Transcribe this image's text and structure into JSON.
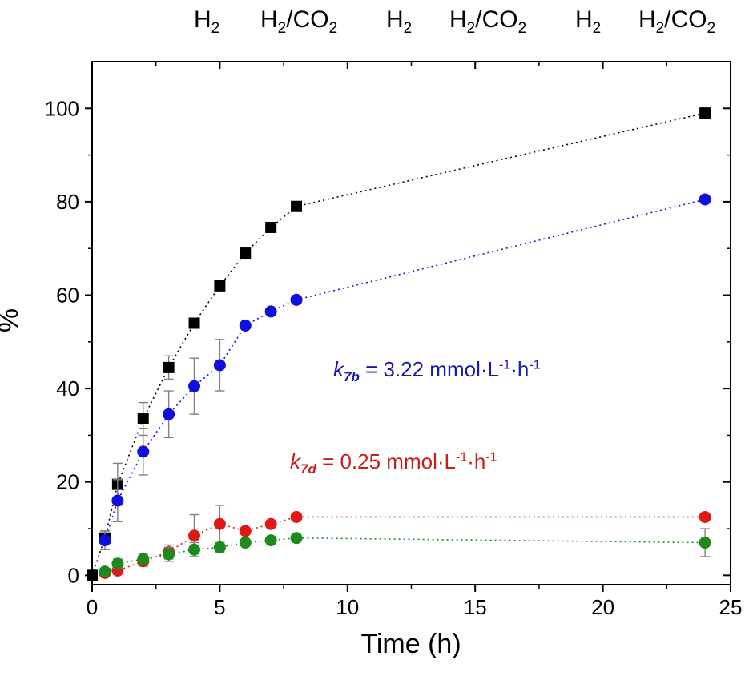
{
  "header_labels": [
    {
      "base": "H",
      "sub": "2",
      "tail": ""
    },
    {
      "base": "H",
      "sub": "2",
      "tail": "/CO",
      "sub2": "2"
    },
    {
      "base": "H",
      "sub": "2",
      "tail": ""
    },
    {
      "base": "H",
      "sub": "2",
      "tail": "/CO",
      "sub2": "2"
    },
    {
      "base": "H",
      "sub": "2",
      "tail": ""
    },
    {
      "base": "H",
      "sub": "2",
      "tail": "/CO",
      "sub2": "2"
    }
  ],
  "chart_data": {
    "type": "scatter",
    "xlabel": "Time (h)",
    "ylabel": "%",
    "xlim": [
      0,
      25
    ],
    "ylim": [
      -2,
      110
    ],
    "xticks": [
      0,
      5,
      10,
      15,
      20,
      25
    ],
    "yticks": [
      0,
      20,
      40,
      60,
      80,
      100
    ],
    "grid": false,
    "series": [
      {
        "marker": "square",
        "color": "#000000",
        "x": [
          0,
          0.5,
          1,
          2,
          3,
          4,
          5,
          6,
          7,
          8,
          24
        ],
        "y": [
          0,
          8,
          19.5,
          33.5,
          44.5,
          54,
          62,
          69,
          74.5,
          79,
          99
        ],
        "err": [
          0,
          1.5,
          4.5,
          3.5,
          2.5,
          1,
          1,
          1,
          1,
          1,
          0.5
        ]
      },
      {
        "marker": "circle",
        "color": "#1010dd",
        "x": [
          0.5,
          1,
          2,
          3,
          4,
          5,
          6,
          7,
          8,
          24
        ],
        "y": [
          7.5,
          16,
          26.5,
          34.5,
          40.5,
          45,
          53.5,
          56.5,
          59,
          80.5
        ],
        "err": [
          2,
          4.5,
          5,
          5,
          6,
          5.5,
          0.5,
          0.5,
          0.5,
          0.5
        ]
      },
      {
        "marker": "circle",
        "color": "#e01818",
        "x": [
          0.5,
          1,
          2,
          3,
          4,
          5,
          6,
          7,
          8,
          24
        ],
        "y": [
          0.5,
          1,
          3,
          5,
          8.5,
          11,
          9.5,
          11,
          12.5,
          12.5
        ],
        "err": [
          0.3,
          0.5,
          1,
          1.5,
          4.5,
          4,
          0.5,
          0.5,
          0.5,
          0.5
        ]
      },
      {
        "marker": "circle",
        "color": "#1c8a1c",
        "x": [
          0.5,
          1,
          2,
          3,
          4,
          5,
          6,
          7,
          8,
          24
        ],
        "y": [
          0.8,
          2.5,
          3.5,
          4.5,
          5.5,
          6,
          7,
          7.5,
          8,
          7
        ],
        "err": [
          0.5,
          1,
          1,
          1.5,
          1.5,
          1,
          0.5,
          0.5,
          0.5,
          3
        ]
      }
    ],
    "annotations": [
      {
        "k": "k",
        "sub": "7b",
        "text": " = 3.22 mmol·L",
        "sup1": "-1",
        "mid": "·h",
        "sup2": "-1",
        "color": "#1a1aa8"
      },
      {
        "k": "k",
        "sub": "7d",
        "text": " = 0.25 mmol·L",
        "sup1": "-1",
        "mid": "·h",
        "sup2": "-1",
        "color": "#c81e1e"
      }
    ]
  }
}
